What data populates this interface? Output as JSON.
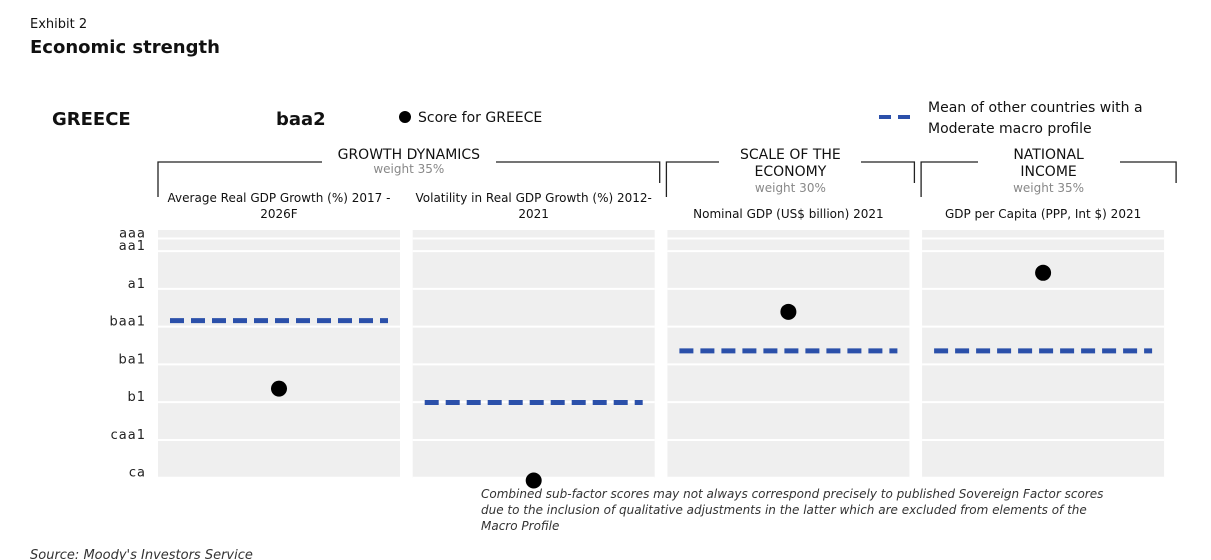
{
  "header": {
    "exhibit": "Exhibit 2",
    "title": "Economic strength",
    "country": "GREECE",
    "rating": "baa2"
  },
  "chart_data": {
    "type": "dot-dash",
    "groups": [
      {
        "name": "GROWTH DYNAMICS",
        "weight": "weight 35%",
        "categories": [
          "Average Real GDP Growth (%) 2017 - 2026F",
          "Volatility in Real GDP Growth (%) 2012-2021"
        ]
      },
      {
        "name": "SCALE OF THE ECONOMY",
        "weight": "weight 30%",
        "categories": [
          "Nominal GDP (US$ billion) 2021"
        ]
      },
      {
        "name": "NATIONAL INCOME",
        "weight": "weight 35%",
        "categories": [
          "GDP per Capita (PPP, Int $) 2021"
        ]
      }
    ],
    "series": [
      {
        "name": "Score for GREECE",
        "color": "#000000",
        "marker": "dot",
        "values": [
          13.4,
          20.7,
          7.3,
          4.2
        ]
      },
      {
        "name": "Mean of other countries with a Moderate macro profile",
        "color": "#2b50aa",
        "marker": "dash",
        "values": [
          8,
          14.5,
          10.4,
          10.4
        ]
      }
    ],
    "ylim": [
      0.8,
      20.5
    ],
    "yticks": [
      {
        "value": 1,
        "label": "aaa"
      },
      {
        "value": 2,
        "label": "aa1"
      },
      {
        "value": 5,
        "label": "a1"
      },
      {
        "value": 8,
        "label": "baa1"
      },
      {
        "value": 11,
        "label": "ba1"
      },
      {
        "value": 14,
        "label": "b1"
      },
      {
        "value": 17,
        "label": "caa1"
      },
      {
        "value": 20,
        "label": "ca"
      }
    ],
    "grid": true,
    "note": "Combined sub-factor scores may not always correspond precisely to published Sovereign Factor scores due to the inclusion of qualitative adjustments in the latter which are excluded from elements of the Macro Profile"
  },
  "source": "Source: Moody's Investors Service"
}
